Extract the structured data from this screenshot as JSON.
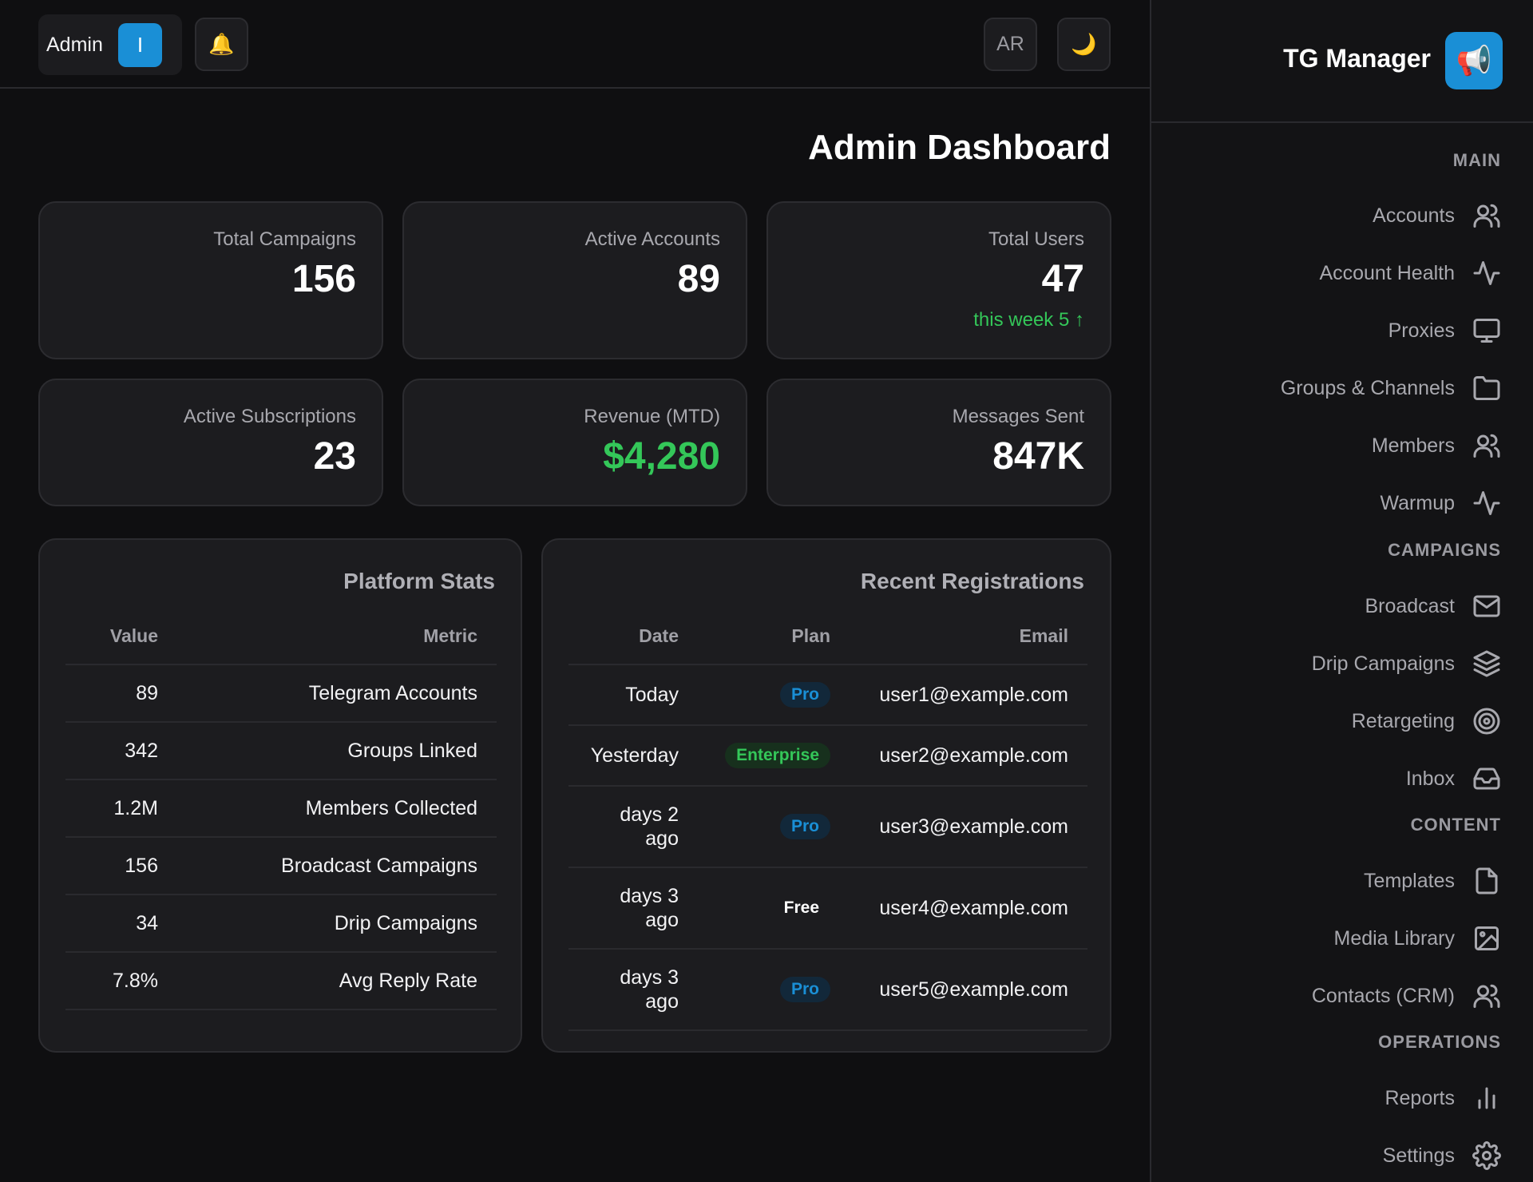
{
  "header": {
    "user_name": "Admin",
    "avatar_initial": "I",
    "lang_label": "AR"
  },
  "page_title": "Admin Dashboard",
  "stats": {
    "total_campaigns": {
      "label": "Total Campaigns",
      "value": "156"
    },
    "active_accounts": {
      "label": "Active Accounts",
      "value": "89"
    },
    "total_users": {
      "label": "Total Users",
      "value": "47",
      "sub": "this week 5 ↑"
    },
    "active_subscriptions": {
      "label": "Active Subscriptions",
      "value": "23"
    },
    "revenue": {
      "label": "Revenue (MTD)",
      "value": "$4,280"
    },
    "messages_sent": {
      "label": "Messages Sent",
      "value": "847K"
    }
  },
  "platform_stats": {
    "title": "Platform Stats",
    "col_value": "Value",
    "col_metric": "Metric",
    "rows": [
      {
        "value": "89",
        "metric": "Telegram Accounts"
      },
      {
        "value": "342",
        "metric": "Groups Linked"
      },
      {
        "value": "1.2M",
        "metric": "Members Collected"
      },
      {
        "value": "156",
        "metric": "Broadcast Campaigns"
      },
      {
        "value": "34",
        "metric": "Drip Campaigns"
      },
      {
        "value": "7.8%",
        "metric": "Avg Reply Rate"
      }
    ]
  },
  "recent_registrations": {
    "title": "Recent Registrations",
    "col_date": "Date",
    "col_plan": "Plan",
    "col_email": "Email",
    "rows": [
      {
        "date_1": "Today",
        "date_2": "",
        "plan": "Pro",
        "email": "user1@example.com"
      },
      {
        "date_1": "Yesterday",
        "date_2": "",
        "plan": "Enterprise",
        "email": "user2@example.com"
      },
      {
        "date_1": "days 2",
        "date_2": "ago",
        "plan": "Pro",
        "email": "user3@example.com"
      },
      {
        "date_1": "days 3",
        "date_2": "ago",
        "plan": "Free",
        "email": "user4@example.com"
      },
      {
        "date_1": "days 3",
        "date_2": "ago",
        "plan": "Pro",
        "email": "user5@example.com"
      }
    ]
  },
  "sidebar": {
    "brand": "TG Manager",
    "sections": {
      "main": "MAIN",
      "campaigns": "CAMPAIGNS",
      "content": "CONTENT",
      "operations": "OPERATIONS"
    },
    "items": {
      "accounts": "Accounts",
      "account_health": "Account Health",
      "proxies": "Proxies",
      "groups_channels": "Groups & Channels",
      "members": "Members",
      "warmup": "Warmup",
      "broadcast": "Broadcast",
      "drip_campaigns": "Drip Campaigns",
      "retargeting": "Retargeting",
      "inbox": "Inbox",
      "templates": "Templates",
      "media_library": "Media Library",
      "contacts_crm": "Contacts (CRM)",
      "reports": "Reports",
      "settings": "Settings"
    }
  },
  "colors": {
    "accent": "#1a8fd6",
    "success": "#34c759",
    "background": "#0f0f11",
    "card": "#1c1c1f"
  }
}
